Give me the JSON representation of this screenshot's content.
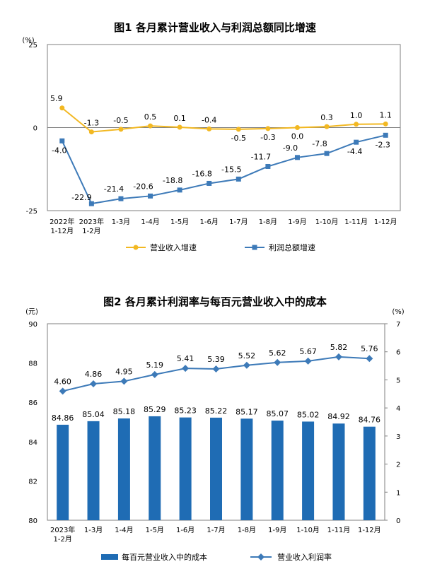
{
  "chart_data": [
    {
      "type": "line",
      "title": "图1  各月累计营业收入与利润总额同比增速",
      "ylabel": "(%)",
      "ylim": [
        -25,
        25
      ],
      "yticks": [
        "25",
        "0",
        "-25"
      ],
      "categories": [
        [
          "2022年",
          "1-12月"
        ],
        [
          "2023年",
          "1-2月"
        ],
        [
          "1-3月"
        ],
        [
          "1-4月"
        ],
        [
          "1-5月"
        ],
        [
          "1-6月"
        ],
        [
          "1-7月"
        ],
        [
          "1-8月"
        ],
        [
          "1-9月"
        ],
        [
          "1-10月"
        ],
        [
          "1-11月"
        ],
        [
          "1-12月"
        ]
      ],
      "series": [
        {
          "name": "营业收入增速",
          "color": "#F2B822",
          "marker": "circle",
          "values": [
            5.9,
            -1.3,
            -0.5,
            0.5,
            0.1,
            -0.4,
            -0.5,
            -0.3,
            0.0,
            0.3,
            1.0,
            1.1
          ],
          "labels": [
            "5.9",
            "-1.3",
            "-0.5",
            "0.5",
            "0.1",
            "-0.4",
            "-0.5",
            "-0.3",
            "0.0",
            "0.3",
            "1.0",
            "1.1"
          ]
        },
        {
          "name": "利润总额增速",
          "color": "#3D7AB8",
          "marker": "square",
          "values": [
            -4.0,
            -22.9,
            -21.4,
            -20.6,
            -18.8,
            -16.8,
            -15.5,
            -11.7,
            -9.0,
            -7.8,
            -4.4,
            -2.3
          ],
          "labels": [
            "-4.0",
            "-22.9",
            "-21.4",
            "-20.6",
            "-18.8",
            "-16.8",
            "-15.5",
            "-11.7",
            "-9.0",
            "-7.8",
            "-4.4",
            "-2.3"
          ]
        }
      ]
    },
    {
      "type": "bar+line",
      "title": "图2  各月累计利润率与每百元营业收入中的成本",
      "ylabel_left": "(元)",
      "ylabel_right": "(%)",
      "ylim_left": [
        80,
        90
      ],
      "ylim_right": [
        0,
        7
      ],
      "yticks_left": [
        "80",
        "82",
        "84",
        "86",
        "88",
        "90"
      ],
      "yticks_right": [
        "0",
        "1",
        "2",
        "3",
        "4",
        "5",
        "6",
        "7"
      ],
      "categories": [
        [
          "2023年",
          "1-2月"
        ],
        [
          "1-3月"
        ],
        [
          "1-4月"
        ],
        [
          "1-5月"
        ],
        [
          "1-6月"
        ],
        [
          "1-7月"
        ],
        [
          "1-8月"
        ],
        [
          "1-9月"
        ],
        [
          "1-10月"
        ],
        [
          "1-11月"
        ],
        [
          "1-12月"
        ]
      ],
      "bars": {
        "name": "每百元营业收入中的成本",
        "color": "#1F6CB4",
        "values": [
          84.86,
          85.04,
          85.18,
          85.29,
          85.23,
          85.22,
          85.17,
          85.07,
          85.02,
          84.92,
          84.76
        ],
        "labels": [
          "84.86",
          "85.04",
          "85.18",
          "85.29",
          "85.23",
          "85.22",
          "85.17",
          "85.07",
          "85.02",
          "84.92",
          "84.76"
        ]
      },
      "line": {
        "name": "营业收入利润率",
        "color": "#3D7AB8",
        "marker": "diamond",
        "values": [
          4.6,
          4.86,
          4.95,
          5.19,
          5.41,
          5.39,
          5.52,
          5.62,
          5.67,
          5.82,
          5.76
        ],
        "labels": [
          "4.60",
          "4.86",
          "4.95",
          "5.19",
          "5.41",
          "5.39",
          "5.52",
          "5.62",
          "5.67",
          "5.82",
          "5.76"
        ]
      }
    }
  ]
}
